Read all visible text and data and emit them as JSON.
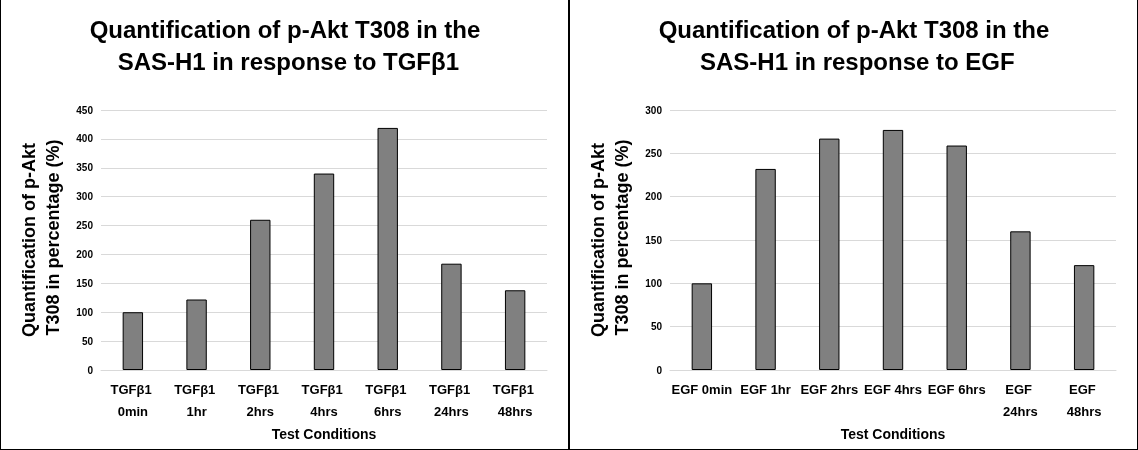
{
  "chart_data": [
    {
      "type": "bar",
      "title": "Quantification of p-Akt T308 in the SAS-H1 in response to TGFβ1",
      "xlabel": "Test Conditions",
      "ylabel": "Quantification of p-Akt T308 in percentage (%)",
      "categories": [
        "TGFβ1 0min",
        "TGFβ1 1hr",
        "TGFβ1 2hrs",
        "TGFβ1 4hrs",
        "TGFβ1 6hrs",
        "TGFβ1 24hrs",
        "TGFβ1 48hrs"
      ],
      "values": [
        100,
        122,
        260,
        340,
        419,
        184,
        138
      ],
      "color": "#808080",
      "ylim": [
        0,
        450
      ],
      "yticks": [
        0,
        50,
        100,
        150,
        200,
        250,
        300,
        350,
        400,
        450
      ],
      "grid": "y"
    },
    {
      "type": "bar",
      "title": "Quantification of p-Akt T308 in the SAS-H1 in response to EGF",
      "xlabel": "Test Conditions",
      "ylabel": "Quantification of p-Akt T308 in percentage (%)",
      "categories": [
        "EGF 0min",
        "EGF 1hr",
        "EGF 2hrs",
        "EGF 4hrs",
        "EGF 6hrs",
        "EGF 24hrs",
        "EGF 48hrs"
      ],
      "values": [
        100,
        232,
        267,
        277,
        259,
        160,
        121
      ],
      "color": "#808080",
      "ylim": [
        0,
        300
      ],
      "yticks": [
        0,
        50,
        100,
        150,
        200,
        250,
        300
      ],
      "grid": "y"
    }
  ]
}
